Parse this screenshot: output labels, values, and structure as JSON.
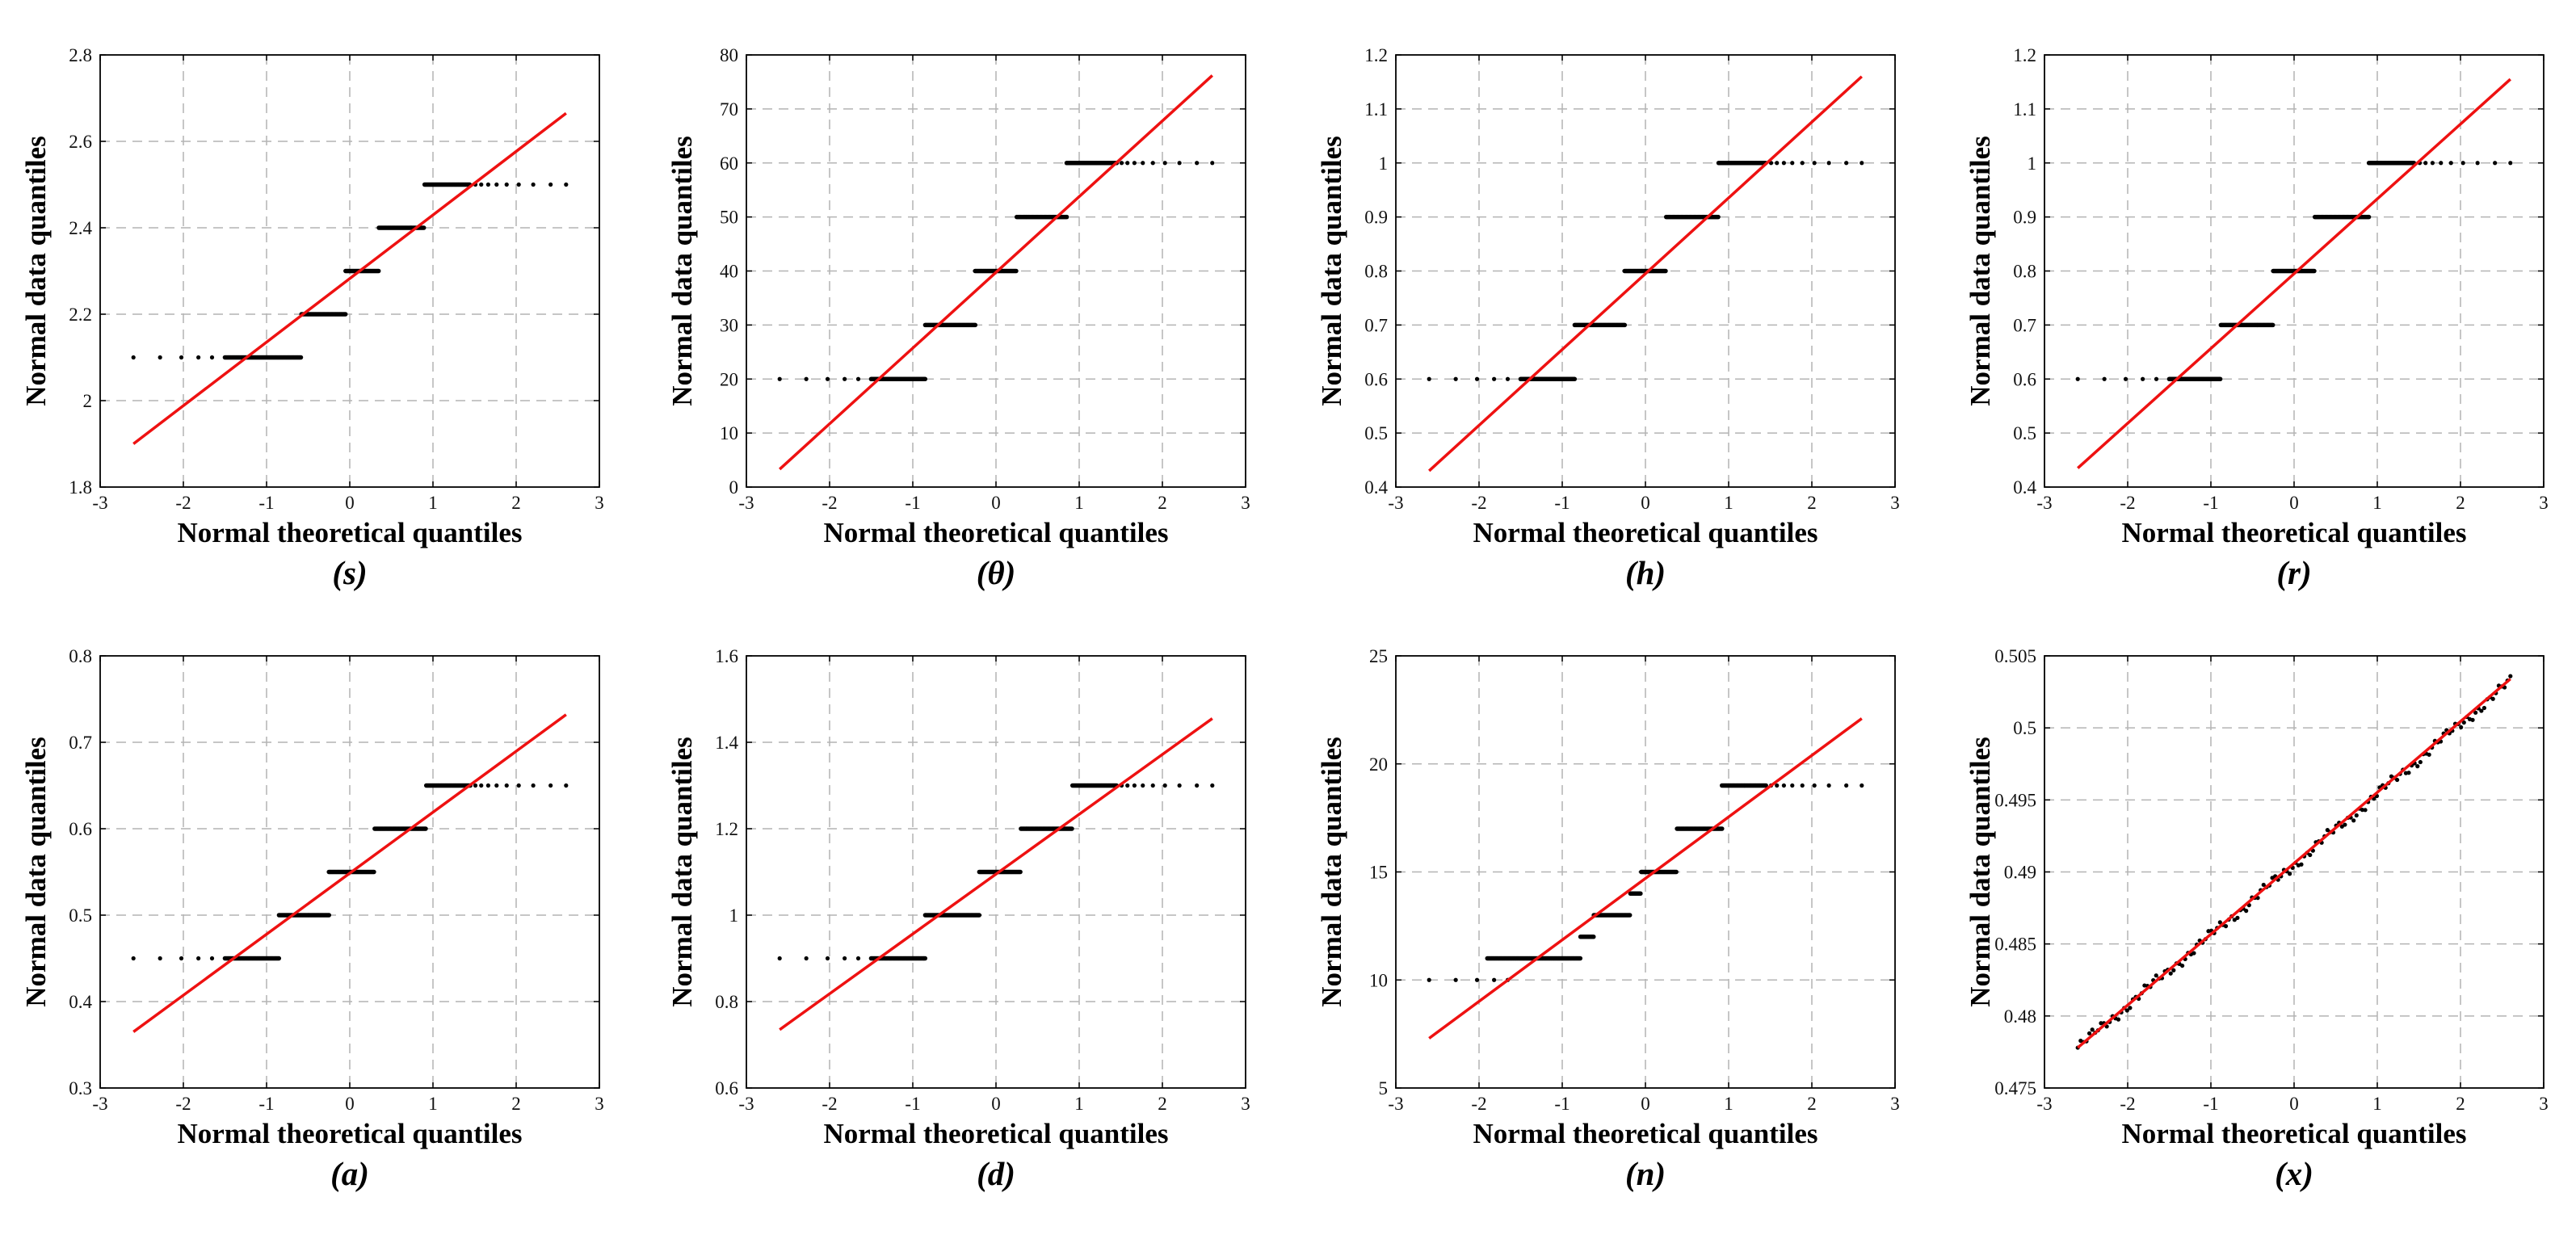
{
  "figure": {
    "colors": {
      "fit_line": "#ee1111",
      "points": "#000000",
      "grid": "#b4b4b4",
      "frame": "#000000",
      "background": "#ffffff"
    }
  },
  "chart_data": [
    {
      "type": "scatter",
      "caption": "(s)",
      "xlabel": "Normal theoretical quantiles",
      "ylabel": "Normal data quantiles",
      "xlim": [
        -3,
        3
      ],
      "ylim": [
        1.8,
        2.8
      ],
      "xticks": [
        -3,
        -2,
        -1,
        0,
        1,
        2,
        3
      ],
      "yticks": [
        1.8,
        2,
        2.2,
        2.4,
        2.6,
        2.8
      ],
      "ytick_labels": [
        "1.8",
        "2",
        "2.2",
        "2.4",
        "2.6",
        "2.8"
      ],
      "grid": true,
      "reference_line": {
        "x": [
          -2.6,
          2.6
        ],
        "y": [
          1.9,
          2.665
        ]
      },
      "steps": [
        {
          "y": 2.1,
          "x_start": -2.6,
          "x_end": -0.58
        },
        {
          "y": 2.2,
          "x_start": -0.58,
          "x_end": -0.05
        },
        {
          "y": 2.3,
          "x_start": -0.05,
          "x_end": 0.35
        },
        {
          "y": 2.4,
          "x_start": 0.35,
          "x_end": 0.9
        },
        {
          "y": 2.5,
          "x_start": 0.9,
          "x_end": 2.6
        }
      ]
    },
    {
      "type": "scatter",
      "caption": "(θ)",
      "xlabel": "Normal theoretical quantiles",
      "ylabel": "Normal data quantiles",
      "xlim": [
        -3,
        3
      ],
      "ylim": [
        0,
        80
      ],
      "xticks": [
        -3,
        -2,
        -1,
        0,
        1,
        2,
        3
      ],
      "yticks": [
        0,
        10,
        20,
        30,
        40,
        50,
        60,
        70,
        80
      ],
      "ytick_labels": [
        "0",
        "10",
        "20",
        "30",
        "40",
        "50",
        "60",
        "70",
        "80"
      ],
      "grid": true,
      "reference_line": {
        "x": [
          -2.6,
          2.6
        ],
        "y": [
          3.3,
          76.2
        ]
      },
      "steps": [
        {
          "y": 20,
          "x_start": -2.6,
          "x_end": -0.85
        },
        {
          "y": 30,
          "x_start": -0.85,
          "x_end": -0.25
        },
        {
          "y": 40,
          "x_start": -0.25,
          "x_end": 0.25
        },
        {
          "y": 50,
          "x_start": 0.25,
          "x_end": 0.85
        },
        {
          "y": 60,
          "x_start": 0.85,
          "x_end": 2.6
        }
      ]
    },
    {
      "type": "scatter",
      "caption": "(h)",
      "xlabel": "Normal theoretical quantiles",
      "ylabel": "Normal data quantiles",
      "xlim": [
        -3,
        3
      ],
      "ylim": [
        0.4,
        1.2
      ],
      "xticks": [
        -3,
        -2,
        -1,
        0,
        1,
        2,
        3
      ],
      "yticks": [
        0.4,
        0.5,
        0.6,
        0.7,
        0.8,
        0.9,
        1,
        1.1,
        1.2
      ],
      "ytick_labels": [
        "0.4",
        "0.5",
        "0.6",
        "0.7",
        "0.8",
        "0.9",
        "1",
        "1.1",
        "1.2"
      ],
      "grid": true,
      "reference_line": {
        "x": [
          -2.6,
          2.6
        ],
        "y": [
          0.43,
          1.16
        ]
      },
      "steps": [
        {
          "y": 0.6,
          "x_start": -2.6,
          "x_end": -0.85
        },
        {
          "y": 0.7,
          "x_start": -0.85,
          "x_end": -0.25
        },
        {
          "y": 0.8,
          "x_start": -0.25,
          "x_end": 0.25
        },
        {
          "y": 0.9,
          "x_start": 0.25,
          "x_end": 0.88
        },
        {
          "y": 1.0,
          "x_start": 0.88,
          "x_end": 2.6
        }
      ]
    },
    {
      "type": "scatter",
      "caption": "(r)",
      "xlabel": "Normal theoretical quantiles",
      "ylabel": "Normal data quantiles",
      "xlim": [
        -3,
        3
      ],
      "ylim": [
        0.4,
        1.2
      ],
      "xticks": [
        -3,
        -2,
        -1,
        0,
        1,
        2,
        3
      ],
      "yticks": [
        0.4,
        0.5,
        0.6,
        0.7,
        0.8,
        0.9,
        1,
        1.1,
        1.2
      ],
      "ytick_labels": [
        "0.4",
        "0.5",
        "0.6",
        "0.7",
        "0.8",
        "0.9",
        "1",
        "1.1",
        "1.2"
      ],
      "grid": true,
      "reference_line": {
        "x": [
          -2.6,
          2.6
        ],
        "y": [
          0.435,
          1.155
        ]
      },
      "steps": [
        {
          "y": 0.6,
          "x_start": -2.6,
          "x_end": -0.88
        },
        {
          "y": 0.7,
          "x_start": -0.88,
          "x_end": -0.25
        },
        {
          "y": 0.8,
          "x_start": -0.25,
          "x_end": 0.25
        },
        {
          "y": 0.9,
          "x_start": 0.25,
          "x_end": 0.9
        },
        {
          "y": 1.0,
          "x_start": 0.9,
          "x_end": 2.6
        }
      ]
    },
    {
      "type": "scatter",
      "caption": "(a)",
      "xlabel": "Normal theoretical quantiles",
      "ylabel": "Normal data quantiles",
      "xlim": [
        -3,
        3
      ],
      "ylim": [
        0.3,
        0.8
      ],
      "xticks": [
        -3,
        -2,
        -1,
        0,
        1,
        2,
        3
      ],
      "yticks": [
        0.3,
        0.4,
        0.5,
        0.6,
        0.7,
        0.8
      ],
      "ytick_labels": [
        "0.3",
        "0.4",
        "0.5",
        "0.6",
        "0.7",
        "0.8"
      ],
      "grid": true,
      "reference_line": {
        "x": [
          -2.6,
          2.6
        ],
        "y": [
          0.365,
          0.732
        ]
      },
      "steps": [
        {
          "y": 0.45,
          "x_start": -2.6,
          "x_end": -0.85
        },
        {
          "y": 0.5,
          "x_start": -0.85,
          "x_end": -0.25
        },
        {
          "y": 0.55,
          "x_start": -0.25,
          "x_end": 0.3
        },
        {
          "y": 0.6,
          "x_start": 0.3,
          "x_end": 0.92
        },
        {
          "y": 0.65,
          "x_start": 0.92,
          "x_end": 2.6
        }
      ]
    },
    {
      "type": "scatter",
      "caption": "(d)",
      "xlabel": "Normal theoretical quantiles",
      "ylabel": "Normal data quantiles",
      "xlim": [
        -3,
        3
      ],
      "ylim": [
        0.6,
        1.6
      ],
      "xticks": [
        -3,
        -2,
        -1,
        0,
        1,
        2,
        3
      ],
      "yticks": [
        0.6,
        0.8,
        1,
        1.2,
        1.4,
        1.6
      ],
      "ytick_labels": [
        "0.6",
        "0.8",
        "1",
        "1.2",
        "1.4",
        "1.6"
      ],
      "grid": true,
      "reference_line": {
        "x": [
          -2.6,
          2.6
        ],
        "y": [
          0.735,
          1.455
        ]
      },
      "steps": [
        {
          "y": 0.9,
          "x_start": -2.6,
          "x_end": -0.85
        },
        {
          "y": 1.0,
          "x_start": -0.85,
          "x_end": -0.2
        },
        {
          "y": 1.1,
          "x_start": -0.2,
          "x_end": 0.3
        },
        {
          "y": 1.2,
          "x_start": 0.3,
          "x_end": 0.92
        },
        {
          "y": 1.3,
          "x_start": 0.92,
          "x_end": 2.6
        }
      ]
    },
    {
      "type": "scatter",
      "caption": "(n)",
      "xlabel": "Normal theoretical quantiles",
      "ylabel": "Normal data quantiles",
      "xlim": [
        -3,
        3
      ],
      "ylim": [
        5,
        25
      ],
      "xticks": [
        -3,
        -2,
        -1,
        0,
        1,
        2,
        3
      ],
      "yticks": [
        5,
        10,
        15,
        20,
        25
      ],
      "ytick_labels": [
        "5",
        "10",
        "15",
        "20",
        "25"
      ],
      "grid": true,
      "reference_line": {
        "x": [
          -2.6,
          2.6
        ],
        "y": [
          7.3,
          22.1
        ]
      },
      "steps": [
        {
          "y": 10,
          "x_start": -2.6,
          "x_end": -1.9
        },
        {
          "y": 11,
          "x_start": -1.9,
          "x_end": -0.78
        },
        {
          "y": 12,
          "x_start": -0.78,
          "x_end": -0.62
        },
        {
          "y": 13,
          "x_start": -0.62,
          "x_end": -0.18
        },
        {
          "y": 14,
          "x_start": -0.18,
          "x_end": -0.05
        },
        {
          "y": 15,
          "x_start": -0.05,
          "x_end": 0.38
        },
        {
          "y": 17,
          "x_start": 0.38,
          "x_end": 0.92
        },
        {
          "y": 19,
          "x_start": 0.92,
          "x_end": 2.6
        }
      ]
    },
    {
      "type": "scatter",
      "caption": "(x)",
      "xlabel": "Normal theoretical quantiles",
      "ylabel": "Normal data quantiles",
      "xlim": [
        -3,
        3
      ],
      "ylim": [
        0.475,
        0.505
      ],
      "xticks": [
        -3,
        -2,
        -1,
        0,
        1,
        2,
        3
      ],
      "yticks": [
        0.475,
        0.48,
        0.485,
        0.49,
        0.495,
        0.5,
        0.505
      ],
      "ytick_labels": [
        "0.475",
        "0.48",
        "0.485",
        "0.49",
        "0.495",
        "0.5",
        "0.505"
      ],
      "grid": true,
      "reference_line": {
        "x": [
          -2.6,
          2.6
        ],
        "y": [
          0.4778,
          0.5034
        ]
      },
      "continuous_points": {
        "x_start": -2.6,
        "x_end": 2.6,
        "y_start": 0.4778,
        "y_end": 0.5032,
        "count": 150
      }
    }
  ]
}
